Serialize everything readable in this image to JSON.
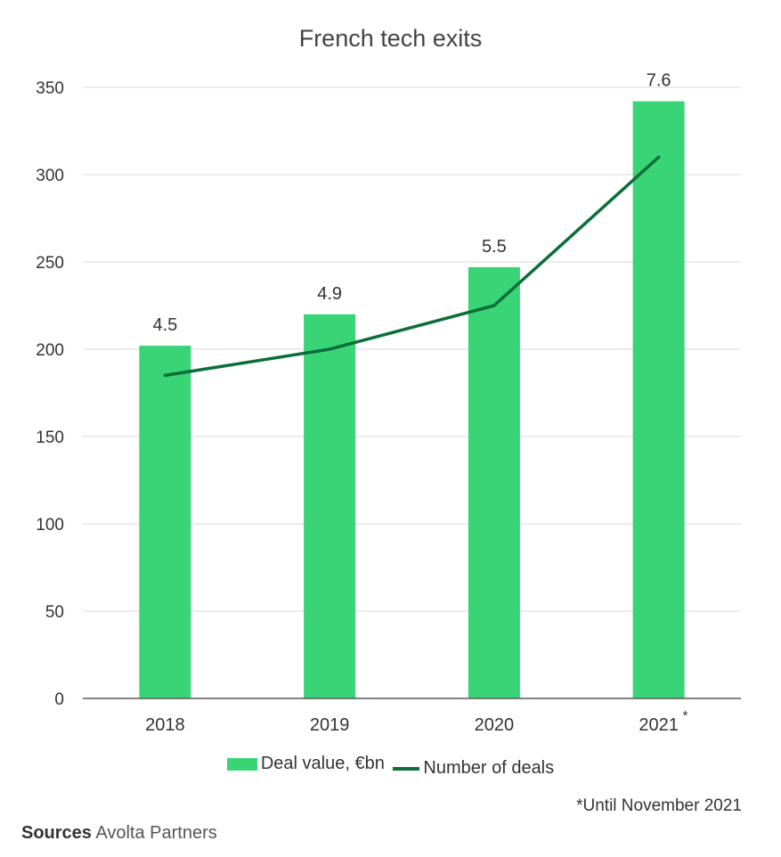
{
  "colors": {
    "bar": "#38d475",
    "line": "#0b6e3a",
    "grid": "#d9d9d9",
    "axis": "#595959",
    "text": "#333333"
  },
  "footnote": "*Until November 2021",
  "sources": {
    "label": "Sources",
    "value": "Avolta Partners"
  },
  "chart_data": {
    "type": "bar",
    "title": "French tech exits",
    "categories": [
      "2018",
      "2019",
      "2020",
      "2021"
    ],
    "category_marks": [
      "",
      "",
      "",
      "*"
    ],
    "ylim": [
      0,
      350
    ],
    "yticks": [
      0,
      50,
      100,
      150,
      200,
      250,
      300,
      350
    ],
    "grid": true,
    "legend_position": "bottom",
    "series": [
      {
        "name": "Deal value, €bn",
        "kind": "bar",
        "values": [
          202,
          220,
          247,
          342
        ],
        "labels": [
          "4.5",
          "4.9",
          "5.5",
          "7.6"
        ]
      },
      {
        "name": "Number of deals",
        "kind": "line",
        "values": [
          185,
          200,
          225,
          310
        ]
      }
    ]
  }
}
